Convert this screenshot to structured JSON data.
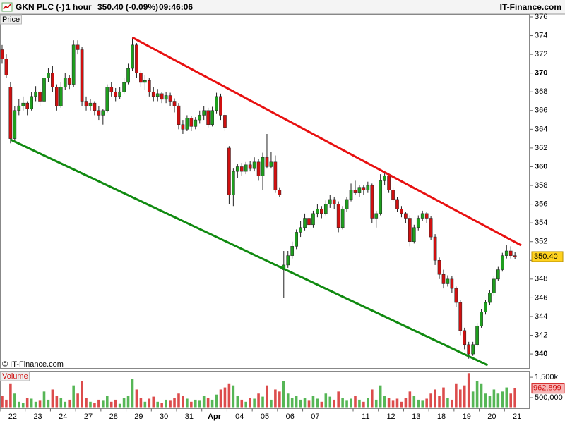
{
  "chart_data": {
    "type": "candlestick",
    "title": "GKN PLC (-)",
    "interval": "1 hour",
    "quote": "350.40 (-0.09%)",
    "time": "09:46:06",
    "source": "IT-Finance.com",
    "watermark": "© IT-Finance.com",
    "y_label": "Price",
    "up_color": "#1e9e1e",
    "down_color": "#d01010",
    "ylim": [
      338.5,
      376.3
    ],
    "yticks": [
      340,
      342,
      344,
      346,
      348,
      350,
      352,
      354,
      356,
      358,
      360,
      362,
      364,
      366,
      368,
      370,
      372,
      374,
      376
    ],
    "last_price": {
      "value": 350.4,
      "label": "350.40"
    },
    "categories": [
      "22",
      null,
      null,
      null,
      null,
      null,
      "23",
      null,
      null,
      null,
      null,
      null,
      "24",
      null,
      null,
      null,
      null,
      null,
      "27",
      null,
      null,
      null,
      null,
      null,
      "28",
      null,
      null,
      null,
      null,
      null,
      "29",
      null,
      null,
      null,
      null,
      null,
      "30",
      null,
      null,
      null,
      null,
      null,
      "31",
      null,
      null,
      null,
      null,
      null,
      "Apr",
      null,
      null,
      null,
      null,
      null,
      "04",
      null,
      null,
      null,
      null,
      null,
      "05",
      null,
      null,
      null,
      null,
      null,
      "06",
      null,
      null,
      null,
      null,
      null,
      "07",
      null,
      null,
      null,
      null,
      null,
      null,
      null,
      null,
      null,
      null,
      null,
      "11",
      null,
      null,
      null,
      null,
      null,
      "12",
      null,
      null,
      null,
      null,
      null,
      "13",
      null,
      null,
      null,
      null,
      null,
      "18",
      null,
      null,
      null,
      null,
      null,
      "19",
      null,
      null,
      null,
      null,
      null,
      "20",
      null,
      null,
      null,
      null,
      null,
      "21",
      null,
      null
    ],
    "candles": [
      [
        372.5,
        373.0,
        371.0,
        371.5
      ],
      [
        371.5,
        372.0,
        369.5,
        369.8
      ],
      [
        368.5,
        369.0,
        362.5,
        363.0
      ],
      [
        363.0,
        366.5,
        362.6,
        366.0
      ],
      [
        366.0,
        367.2,
        365.5,
        366.5
      ],
      [
        366.5,
        367.5,
        366.0,
        366.8
      ],
      [
        366.8,
        367.0,
        365.5,
        366.2
      ],
      [
        366.2,
        368.0,
        366.0,
        367.5
      ],
      [
        367.5,
        368.6,
        367.0,
        368.0
      ],
      [
        368.0,
        368.3,
        366.5,
        367.0
      ],
      [
        367.0,
        370.0,
        366.8,
        369.5
      ],
      [
        369.5,
        370.5,
        369.0,
        370.0
      ],
      [
        370.0,
        370.8,
        368.0,
        368.5
      ],
      [
        368.5,
        368.8,
        366.0,
        366.5
      ],
      [
        366.5,
        369.0,
        366.3,
        368.5
      ],
      [
        368.5,
        370.0,
        368.2,
        369.5
      ],
      [
        369.5,
        369.8,
        368.3,
        368.8
      ],
      [
        368.8,
        373.5,
        368.5,
        373.0
      ],
      [
        373.0,
        373.5,
        372.0,
        372.5
      ],
      [
        372.5,
        372.8,
        366.5,
        367.0
      ],
      [
        367.0,
        367.5,
        366.0,
        366.5
      ],
      [
        366.5,
        367.2,
        366.0,
        366.8
      ],
      [
        366.8,
        367.0,
        365.5,
        366.0
      ],
      [
        366.0,
        366.5,
        365.0,
        365.5
      ],
      [
        365.5,
        366.2,
        364.5,
        366.0
      ],
      [
        366.0,
        368.8,
        365.8,
        368.5
      ],
      [
        368.5,
        369.0,
        367.5,
        368.0
      ],
      [
        368.0,
        368.4,
        367.0,
        367.5
      ],
      [
        367.5,
        368.5,
        367.2,
        368.0
      ],
      [
        368.0,
        369.5,
        367.8,
        369.0
      ],
      [
        369.0,
        371.0,
        368.8,
        370.5
      ],
      [
        370.5,
        373.8,
        370.2,
        373.0
      ],
      [
        373.0,
        373.2,
        369.5,
        370.0
      ],
      [
        370.0,
        370.3,
        368.5,
        369.0
      ],
      [
        369.0,
        369.8,
        368.2,
        369.2
      ],
      [
        369.2,
        369.5,
        367.5,
        368.0
      ],
      [
        368.0,
        368.5,
        367.0,
        367.5
      ],
      [
        367.5,
        368.3,
        367.0,
        367.8
      ],
      [
        367.8,
        368.0,
        366.8,
        367.2
      ],
      [
        367.2,
        368.0,
        366.8,
        367.6
      ],
      [
        367.6,
        367.9,
        366.5,
        367.0
      ],
      [
        367.0,
        367.3,
        365.8,
        366.5
      ],
      [
        366.5,
        366.8,
        364.0,
        364.5
      ],
      [
        364.5,
        365.0,
        363.5,
        364.0
      ],
      [
        364.0,
        365.5,
        363.8,
        365.2
      ],
      [
        365.2,
        365.4,
        363.8,
        364.3
      ],
      [
        364.3,
        365.3,
        364.0,
        365.0
      ],
      [
        365.0,
        366.0,
        364.6,
        365.5
      ],
      [
        365.5,
        366.5,
        365.0,
        366.0
      ],
      [
        366.0,
        366.3,
        364.2,
        364.5
      ],
      [
        364.5,
        366.4,
        364.3,
        366.0
      ],
      [
        366.0,
        367.9,
        365.7,
        367.5
      ],
      [
        367.5,
        367.8,
        365.0,
        365.5
      ],
      [
        365.5,
        365.8,
        363.8,
        364.2
      ],
      [
        362.0,
        362.2,
        356.0,
        357.0
      ],
      [
        357.0,
        359.8,
        355.8,
        359.5
      ],
      [
        359.5,
        360.3,
        358.8,
        360.0
      ],
      [
        360.0,
        360.4,
        359.0,
        359.5
      ],
      [
        359.5,
        360.5,
        359.2,
        360.2
      ],
      [
        360.2,
        360.6,
        359.5,
        359.8
      ],
      [
        359.8,
        361.0,
        359.5,
        360.5
      ],
      [
        360.5,
        360.8,
        358.5,
        359.0
      ],
      [
        359.0,
        361.5,
        357.5,
        361.0
      ],
      [
        361.0,
        363.5,
        359.8,
        360.0
      ],
      [
        360.0,
        361.6,
        359.8,
        360.5
      ],
      [
        360.5,
        361.2,
        357.2,
        357.5
      ],
      [
        357.5,
        357.8,
        356.8,
        357.0
      ],
      [
        349.0,
        351.0,
        346.0,
        349.5
      ],
      [
        349.5,
        351.0,
        349.2,
        350.5
      ],
      [
        350.5,
        352.0,
        350.2,
        351.5
      ],
      [
        351.5,
        353.3,
        351.2,
        353.0
      ],
      [
        353.0,
        354.2,
        352.5,
        353.5
      ],
      [
        353.5,
        355.0,
        353.2,
        354.5
      ],
      [
        354.5,
        354.8,
        353.2,
        353.8
      ],
      [
        353.8,
        355.3,
        353.5,
        355.0
      ],
      [
        355.0,
        356.0,
        354.6,
        355.5
      ],
      [
        355.5,
        355.8,
        354.5,
        355.0
      ],
      [
        355.0,
        356.4,
        354.8,
        356.0
      ],
      [
        356.0,
        357.0,
        355.6,
        356.5
      ],
      [
        356.5,
        356.8,
        355.5,
        356.0
      ],
      [
        356.0,
        356.3,
        353.0,
        353.5
      ],
      [
        353.5,
        355.8,
        353.3,
        355.5
      ],
      [
        355.5,
        356.8,
        355.2,
        356.5
      ],
      [
        356.5,
        358.2,
        356.3,
        357.5
      ],
      [
        357.5,
        358.5,
        357.0,
        357.2
      ],
      [
        357.2,
        358.0,
        356.8,
        357.8
      ],
      [
        357.8,
        358.0,
        357.0,
        357.5
      ],
      [
        357.5,
        358.4,
        357.2,
        358.0
      ],
      [
        358.0,
        358.2,
        354.0,
        354.5
      ],
      [
        354.5,
        355.3,
        353.5,
        355.0
      ],
      [
        355.0,
        359.2,
        354.8,
        358.5
      ],
      [
        358.5,
        359.3,
        358.0,
        359.0
      ],
      [
        359.0,
        359.2,
        357.2,
        357.5
      ],
      [
        357.5,
        357.8,
        356.2,
        356.5
      ],
      [
        356.5,
        356.8,
        355.2,
        355.5
      ],
      [
        355.5,
        355.8,
        354.6,
        355.0
      ],
      [
        355.0,
        355.2,
        354.0,
        354.5
      ],
      [
        354.5,
        354.8,
        351.5,
        352.0
      ],
      [
        352.0,
        353.8,
        351.8,
        353.5
      ],
      [
        353.5,
        354.8,
        353.2,
        354.5
      ],
      [
        354.5,
        355.3,
        354.2,
        355.0
      ],
      [
        355.0,
        355.2,
        354.0,
        354.5
      ],
      [
        354.5,
        354.7,
        352.2,
        352.5
      ],
      [
        352.5,
        352.8,
        349.5,
        350.0
      ],
      [
        350.0,
        350.3,
        348.0,
        348.5
      ],
      [
        348.5,
        349.0,
        347.0,
        347.5
      ],
      [
        347.5,
        348.4,
        347.2,
        348.0
      ],
      [
        348.0,
        348.3,
        346.5,
        347.0
      ],
      [
        347.0,
        347.2,
        345.0,
        345.5
      ],
      [
        345.5,
        345.8,
        342.0,
        342.5
      ],
      [
        342.5,
        342.8,
        340.5,
        341.0
      ],
      [
        341.0,
        341.3,
        339.5,
        340.0
      ],
      [
        340.0,
        341.3,
        339.8,
        341.0
      ],
      [
        341.0,
        343.3,
        340.8,
        343.0
      ],
      [
        343.0,
        344.8,
        342.8,
        344.5
      ],
      [
        344.5,
        345.8,
        344.2,
        345.5
      ],
      [
        345.5,
        346.8,
        345.2,
        346.5
      ],
      [
        346.5,
        348.3,
        346.2,
        348.0
      ],
      [
        348.0,
        349.3,
        347.8,
        349.0
      ],
      [
        349.0,
        350.8,
        348.8,
        350.5
      ],
      [
        350.5,
        351.6,
        350.2,
        351.0
      ],
      [
        351.0,
        351.5,
        350.2,
        350.5
      ],
      [
        350.5,
        350.9,
        350.1,
        350.4
      ]
    ],
    "trendlines": [
      {
        "color": "#e81010",
        "x": [
          31,
          123.5
        ],
        "y": [
          373.8,
          351.6
        ]
      },
      {
        "color": "#108a10",
        "x": [
          2,
          115.5
        ],
        "y": [
          362.9,
          338.8
        ]
      }
    ],
    "volume": {
      "label": "Volume",
      "ylim": [
        0,
        1780000
      ],
      "yticks": [
        {
          "value": 1500000,
          "label": "1,500k"
        },
        {
          "value": 500000,
          "label": "500,000"
        }
      ],
      "last": {
        "value": 962899,
        "label": "962,899"
      },
      "values": [
        600000,
        400000,
        1200000,
        700000,
        300000,
        250000,
        500000,
        450000,
        300000,
        350000,
        800000,
        400000,
        900000,
        600000,
        500000,
        300000,
        400000,
        1100000,
        700000,
        1300000,
        500000,
        300000,
        250000,
        400000,
        350000,
        600000,
        300000,
        400000,
        200000,
        500000,
        600000,
        1400000,
        900000,
        500000,
        300000,
        450000,
        550000,
        300000,
        250000,
        400000,
        350000,
        500000,
        700000,
        600000,
        450000,
        300000,
        400000,
        350000,
        600000,
        500000,
        400000,
        650000,
        900000,
        1000000,
        1200000,
        1100000,
        600000,
        400000,
        300000,
        500000,
        450000,
        700000,
        550000,
        1100000,
        400000,
        900000,
        800000,
        1300000,
        700000,
        500000,
        600000,
        400000,
        500000,
        350000,
        600000,
        450000,
        300000,
        700000,
        550000,
        400000,
        800000,
        500000,
        350000,
        450000,
        600000,
        400000,
        300000,
        500000,
        900000,
        400000,
        1100000,
        600000,
        500000,
        350000,
        450000,
        300000,
        500000,
        800000,
        600000,
        400000,
        350000,
        450000,
        700000,
        900000,
        600000,
        1000000,
        500000,
        400000,
        1200000,
        900000,
        1100000,
        1700000,
        800000,
        1300000,
        1200000,
        700000,
        600000,
        900000,
        700000,
        800000,
        1000000,
        700000,
        962899
      ]
    }
  }
}
